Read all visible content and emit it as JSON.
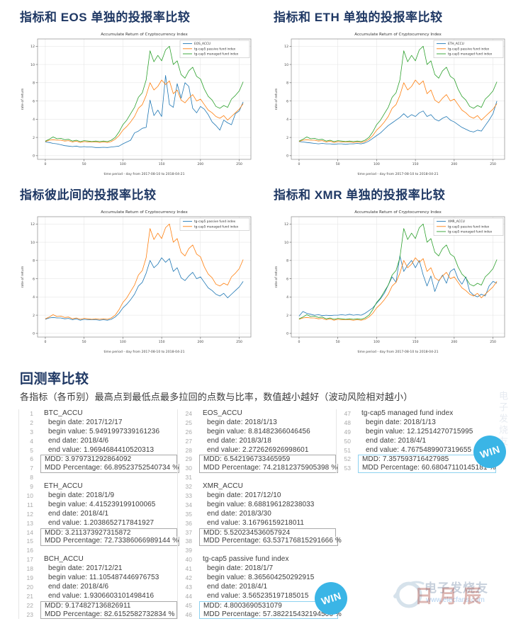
{
  "sections": [
    {
      "title": "指标和 EOS 单独的投报率比较"
    },
    {
      "title": "指标和 ETH 单独的投报率比较"
    },
    {
      "title": "指标彼此间的投报率比较"
    },
    {
      "title": "指标和 XMR 单独的投报率比较"
    }
  ],
  "chart_data": [
    {
      "type": "line",
      "title": "Accumulate Return of Cryptocurrency Index",
      "xlabel": "time period - day from 2017-08-10 to 2018-04-21",
      "ylabel": "rate of return",
      "xlim": [
        -10,
        265
      ],
      "ylim": [
        -0.4,
        12.8
      ],
      "xticks": [
        0,
        50,
        100,
        150,
        200,
        250
      ],
      "yticks": [
        0,
        2,
        4,
        6,
        8,
        10,
        12
      ],
      "grid": true,
      "legend_position": "top-right",
      "x": [
        0,
        5,
        10,
        15,
        20,
        25,
        30,
        35,
        40,
        45,
        50,
        55,
        60,
        65,
        70,
        75,
        80,
        85,
        90,
        95,
        100,
        105,
        110,
        115,
        120,
        125,
        130,
        135,
        140,
        145,
        150,
        155,
        160,
        165,
        170,
        175,
        180,
        185,
        190,
        195,
        200,
        205,
        210,
        215,
        220,
        225,
        230,
        235,
        240,
        245,
        250,
        255
      ],
      "series": [
        {
          "name": "EOS_ACCU",
          "color": "#1f77b4",
          "values": [
            1.5,
            1.45,
            1.35,
            1.3,
            1.2,
            1.1,
            1.05,
            1.0,
            1.05,
            0.95,
            1.0,
            0.95,
            0.95,
            0.9,
            0.9,
            0.92,
            0.9,
            0.95,
            1.0,
            1.05,
            1.3,
            1.5,
            1.7,
            2.5,
            2.7,
            3.0,
            3.1,
            6.1,
            4.4,
            5.0,
            4.3,
            8.8,
            5.6,
            5.3,
            7.9,
            6.3,
            8.0,
            7.6,
            5.2,
            4.7,
            5.4,
            5.1,
            4.5,
            3.7,
            3.3,
            2.8,
            3.9,
            3.6,
            3.4,
            4.6,
            4.9,
            5.9
          ]
        },
        {
          "name": "tg-cap5 passive fund index",
          "color": "#ff7f0e",
          "values": [
            1.55,
            1.7,
            1.75,
            1.7,
            1.7,
            1.6,
            1.65,
            1.5,
            1.6,
            1.45,
            1.55,
            1.5,
            1.5,
            1.5,
            1.45,
            1.5,
            1.45,
            1.55,
            1.8,
            2.2,
            2.8,
            3.2,
            3.7,
            4.3,
            5.2,
            5.6,
            6.6,
            8.0,
            7.2,
            7.6,
            8.3,
            7.8,
            8.2,
            6.8,
            7.2,
            6.1,
            5.8,
            6.3,
            6.7,
            6.0,
            6.2,
            5.6,
            5.0,
            4.7,
            4.3,
            4.1,
            4.4,
            3.9,
            4.3,
            4.7,
            5.1,
            5.7
          ]
        },
        {
          "name": "tg-cap5 managed fund index",
          "color": "#2ca02c",
          "values": [
            1.6,
            1.8,
            2.05,
            1.85,
            1.9,
            1.75,
            1.8,
            1.6,
            1.7,
            1.55,
            1.65,
            1.6,
            1.55,
            1.6,
            1.55,
            1.6,
            1.55,
            1.7,
            2.0,
            2.6,
            3.4,
            3.9,
            4.6,
            5.3,
            6.4,
            6.9,
            8.3,
            11.5,
            10.3,
            11.0,
            10.4,
            11.6,
            12.0,
            10.0,
            10.4,
            8.9,
            8.5,
            9.3,
            9.7,
            8.7,
            8.4,
            7.3,
            6.5,
            6.1,
            5.4,
            5.2,
            5.5,
            5.3,
            6.2,
            6.6,
            7.1,
            8.1
          ]
        }
      ]
    },
    {
      "type": "line",
      "title": "Accumulate Return of Cryptocurrency Index",
      "xlabel": "time period - day from 2017-08-10 to 2018-04-21",
      "ylabel": "rate of return",
      "xlim": [
        -10,
        265
      ],
      "ylim": [
        -0.4,
        12.8
      ],
      "xticks": [
        0,
        50,
        100,
        150,
        200,
        250
      ],
      "yticks": [
        0,
        2,
        4,
        6,
        8,
        10,
        12
      ],
      "grid": true,
      "legend_position": "top-right",
      "x": [
        0,
        5,
        10,
        15,
        20,
        25,
        30,
        35,
        40,
        45,
        50,
        55,
        60,
        65,
        70,
        75,
        80,
        85,
        90,
        95,
        100,
        105,
        110,
        115,
        120,
        125,
        130,
        135,
        140,
        145,
        150,
        155,
        160,
        165,
        170,
        175,
        180,
        185,
        190,
        195,
        200,
        205,
        210,
        215,
        220,
        225,
        230,
        235,
        240,
        245,
        250,
        255
      ],
      "series": [
        {
          "name": "ETH_ACCU",
          "color": "#1f77b4",
          "values": [
            1.55,
            1.5,
            1.45,
            1.4,
            1.35,
            1.3,
            1.35,
            1.3,
            1.3,
            1.25,
            1.3,
            1.3,
            1.25,
            1.3,
            1.3,
            1.35,
            1.3,
            1.4,
            1.6,
            1.9,
            2.2,
            2.5,
            2.9,
            3.3,
            3.6,
            3.9,
            4.2,
            4.6,
            4.2,
            4.5,
            4.3,
            4.7,
            4.9,
            4.3,
            4.5,
            4.0,
            3.8,
            4.1,
            4.3,
            3.9,
            3.7,
            3.4,
            3.1,
            2.9,
            2.7,
            2.6,
            2.8,
            2.7,
            3.3,
            3.9,
            4.6,
            6.0
          ]
        },
        {
          "name": "tg-cap5 passive fund index",
          "color": "#ff7f0e",
          "values": [
            1.55,
            1.7,
            1.75,
            1.7,
            1.7,
            1.6,
            1.65,
            1.5,
            1.6,
            1.45,
            1.55,
            1.5,
            1.5,
            1.5,
            1.45,
            1.5,
            1.45,
            1.55,
            1.8,
            2.2,
            2.8,
            3.2,
            3.7,
            4.3,
            5.2,
            5.6,
            6.6,
            8.0,
            7.2,
            7.6,
            8.3,
            7.8,
            8.2,
            6.8,
            7.2,
            6.1,
            5.8,
            6.3,
            6.7,
            6.0,
            6.2,
            5.6,
            5.0,
            4.7,
            4.3,
            4.1,
            4.4,
            3.9,
            4.3,
            4.7,
            5.1,
            5.7
          ]
        },
        {
          "name": "tg-cap5 managed fund index",
          "color": "#2ca02c",
          "values": [
            1.6,
            1.8,
            2.05,
            1.85,
            1.9,
            1.75,
            1.8,
            1.6,
            1.7,
            1.55,
            1.65,
            1.6,
            1.55,
            1.6,
            1.55,
            1.6,
            1.55,
            1.7,
            2.0,
            2.6,
            3.4,
            3.9,
            4.6,
            5.3,
            6.4,
            6.9,
            8.3,
            11.5,
            10.3,
            11.0,
            10.4,
            11.6,
            12.0,
            10.0,
            10.4,
            8.9,
            8.5,
            9.3,
            9.7,
            8.7,
            8.4,
            7.3,
            6.5,
            6.1,
            5.4,
            5.2,
            5.5,
            5.3,
            6.2,
            6.6,
            7.1,
            8.1
          ]
        }
      ]
    },
    {
      "type": "line",
      "title": "Accumulate Return of Cryptocurrency Index",
      "xlabel": "time period - day from 2017-08-10 to 2018-04-21",
      "ylabel": "rate of return",
      "xlim": [
        -10,
        265
      ],
      "ylim": [
        -0.4,
        12.8
      ],
      "xticks": [
        0,
        50,
        100,
        150,
        200,
        250
      ],
      "yticks": [
        0,
        2,
        4,
        6,
        8,
        10,
        12
      ],
      "grid": true,
      "legend_position": "top-right",
      "x": [
        0,
        5,
        10,
        15,
        20,
        25,
        30,
        35,
        40,
        45,
        50,
        55,
        60,
        65,
        70,
        75,
        80,
        85,
        90,
        95,
        100,
        105,
        110,
        115,
        120,
        125,
        130,
        135,
        140,
        145,
        150,
        155,
        160,
        165,
        170,
        175,
        180,
        185,
        190,
        195,
        200,
        205,
        210,
        215,
        220,
        225,
        230,
        235,
        240,
        245,
        250,
        255
      ],
      "series": [
        {
          "name": "tg-cap5 passive fund index",
          "color": "#1f77b4",
          "values": [
            1.55,
            1.7,
            1.75,
            1.7,
            1.7,
            1.6,
            1.65,
            1.5,
            1.6,
            1.45,
            1.55,
            1.5,
            1.5,
            1.5,
            1.45,
            1.5,
            1.45,
            1.55,
            1.8,
            2.2,
            2.8,
            3.2,
            3.7,
            4.3,
            5.2,
            5.6,
            6.6,
            8.0,
            7.2,
            7.6,
            8.3,
            7.8,
            8.2,
            6.8,
            7.2,
            6.1,
            5.8,
            6.3,
            6.7,
            6.0,
            6.2,
            5.6,
            5.0,
            4.7,
            4.3,
            4.1,
            4.4,
            3.9,
            4.3,
            4.7,
            5.1,
            5.7
          ]
        },
        {
          "name": "tg-cap5 managed fund index",
          "color": "#ff7f0e",
          "values": [
            1.6,
            1.8,
            2.05,
            1.85,
            1.9,
            1.75,
            1.8,
            1.6,
            1.7,
            1.55,
            1.65,
            1.6,
            1.55,
            1.6,
            1.55,
            1.6,
            1.55,
            1.7,
            2.0,
            2.6,
            3.4,
            3.9,
            4.6,
            5.3,
            6.4,
            6.9,
            8.3,
            11.5,
            10.3,
            11.0,
            10.4,
            11.6,
            12.0,
            10.0,
            10.4,
            8.9,
            8.5,
            9.3,
            9.7,
            8.7,
            8.4,
            7.3,
            6.5,
            6.1,
            5.4,
            5.2,
            5.5,
            5.3,
            6.2,
            6.6,
            7.1,
            8.1
          ]
        }
      ]
    },
    {
      "type": "line",
      "title": "Accumulate Return of Cryptocurrency Index",
      "xlabel": "time period - day from 2017-08-10 to 2018-04-21",
      "ylabel": "rate of return",
      "xlim": [
        -10,
        265
      ],
      "ylim": [
        -0.4,
        12.8
      ],
      "xticks": [
        0,
        50,
        100,
        150,
        200,
        250
      ],
      "yticks": [
        0,
        2,
        4,
        6,
        8,
        10,
        12
      ],
      "grid": true,
      "legend_position": "top-right",
      "x": [
        0,
        5,
        10,
        15,
        20,
        25,
        30,
        35,
        40,
        45,
        50,
        55,
        60,
        65,
        70,
        75,
        80,
        85,
        90,
        95,
        100,
        105,
        110,
        115,
        120,
        125,
        130,
        135,
        140,
        145,
        150,
        155,
        160,
        165,
        170,
        175,
        180,
        185,
        190,
        195,
        200,
        205,
        210,
        215,
        220,
        225,
        230,
        235,
        240,
        245,
        250,
        255
      ],
      "series": [
        {
          "name": "XMR_ACCU",
          "color": "#1f77b4",
          "values": [
            1.9,
            2.4,
            2.2,
            2.1,
            2.0,
            2.05,
            1.95,
            2.0,
            1.95,
            2.0,
            2.0,
            2.05,
            2.0,
            2.1,
            2.0,
            2.05,
            2.0,
            2.2,
            2.5,
            2.8,
            3.3,
            3.8,
            4.4,
            5.3,
            6.2,
            5.6,
            8.5,
            6.8,
            7.5,
            8.0,
            7.2,
            8.0,
            6.4,
            5.2,
            6.3,
            4.6,
            5.7,
            6.4,
            5.5,
            6.8,
            7.1,
            6.0,
            5.4,
            6.2,
            4.6,
            4.2,
            4.0,
            4.3,
            4.1,
            5.2,
            5.7,
            5.5
          ]
        },
        {
          "name": "tg-cap5 passive fund index",
          "color": "#ff7f0e",
          "values": [
            1.55,
            1.7,
            1.75,
            1.7,
            1.7,
            1.6,
            1.65,
            1.5,
            1.6,
            1.45,
            1.55,
            1.5,
            1.5,
            1.5,
            1.45,
            1.5,
            1.45,
            1.55,
            1.8,
            2.2,
            2.8,
            3.2,
            3.7,
            4.3,
            5.2,
            5.6,
            6.6,
            8.0,
            7.2,
            7.6,
            8.3,
            7.8,
            8.2,
            6.8,
            7.2,
            6.1,
            5.8,
            6.3,
            6.7,
            6.0,
            6.2,
            5.6,
            5.0,
            4.7,
            4.3,
            4.1,
            4.4,
            3.9,
            4.3,
            4.7,
            5.1,
            5.7
          ]
        },
        {
          "name": "tg-cap5 managed fund index",
          "color": "#2ca02c",
          "values": [
            1.6,
            1.8,
            2.05,
            1.85,
            1.9,
            1.75,
            1.8,
            1.6,
            1.7,
            1.55,
            1.65,
            1.6,
            1.55,
            1.6,
            1.55,
            1.6,
            1.55,
            1.7,
            2.0,
            2.6,
            3.4,
            3.9,
            4.6,
            5.3,
            6.4,
            6.9,
            8.3,
            11.5,
            10.3,
            11.0,
            10.4,
            11.6,
            12.0,
            10.0,
            10.4,
            8.9,
            8.5,
            9.3,
            9.7,
            8.7,
            8.4,
            7.3,
            6.5,
            6.1,
            5.4,
            5.2,
            5.5,
            5.3,
            6.2,
            6.6,
            7.1,
            8.1
          ]
        }
      ]
    }
  ],
  "backtest": {
    "section_title": "回测率比较",
    "subtitle": "各指标（各币别）最高点到最低点最多拉回的点数与比率，数值越小越好（波动风险相对越小）",
    "labels": {
      "begin_date": "begin date:",
      "begin_value": "begin value:",
      "end_date": "end date:",
      "end_value": "end value:",
      "mdd": "MDD:",
      "mdd_percentage": "MDD Percentage:"
    },
    "win_label": "WIN",
    "win_color": "#3ab5e6",
    "columns": [
      {
        "blocks": [
          {
            "name": "BTC_ACCU",
            "begin_date": "2017/12/17",
            "begin_value": "5.9491997339161236",
            "end_date": "2018/4/6",
            "end_value": "1.9694684410520313",
            "mdd": "3.979731292864092",
            "mdd_percentage": "66.89523752540734 %",
            "win": false
          },
          {
            "name": "ETH_ACCU",
            "begin_date": "2018/1/9",
            "begin_value": "4.415239199100065",
            "end_date": "2018/4/1",
            "end_value": "1.2038652717841927",
            "mdd": "3.211373927315872",
            "mdd_percentage": "72.73386066989144 %",
            "win": false
          },
          {
            "name": "BCH_ACCU",
            "begin_date": "2017/12/21",
            "begin_value": "11.105487446976753",
            "end_date": "2018/4/6",
            "end_value": "1.9306603101498416",
            "mdd": "9.174827136826911",
            "mdd_percentage": "82.6152582732834 %",
            "win": false
          }
        ]
      },
      {
        "blocks": [
          {
            "name": "EOS_ACCU",
            "begin_date": "2018/1/13",
            "begin_value": "8.81482366046456",
            "end_date": "2018/3/18",
            "end_value": "2.272626926998601",
            "mdd": "6.542196733465959",
            "mdd_percentage": "74.21812375905398 %",
            "win": false
          },
          {
            "name": "XMR_ACCU",
            "begin_date": "2017/12/10",
            "begin_value": "8.688196128238033",
            "end_date": "2018/3/30",
            "end_value": "3.16796159218011",
            "mdd": "5.520234536057924",
            "mdd_percentage": "63.537176815291666 %",
            "win": false
          },
          {
            "name": "tg-cap5 passive fund index",
            "begin_date": "2018/1/7",
            "begin_value": "8.365604250292915",
            "end_date": "2018/4/1",
            "end_value": "3.565235197185015",
            "mdd": "4.8003690531079",
            "mdd_percentage": "57.382215432194506 %",
            "win": true
          }
        ]
      },
      {
        "blocks": [
          {
            "name": "tg-cap5 managed fund index",
            "begin_date": "2018/1/13",
            "begin_value": "12.12514270715995",
            "end_date": "2018/4/1",
            "end_value": "4.7675489907319655",
            "mdd": "7.357593716427985",
            "mdd_percentage": "60.68047110145181 %",
            "win": true
          }
        ]
      }
    ]
  },
  "watermark": {
    "brand": "电子发烧友",
    "url": "www.elecfans.com",
    "stamp": "日月辰",
    "vertical": "电子发烧友"
  }
}
